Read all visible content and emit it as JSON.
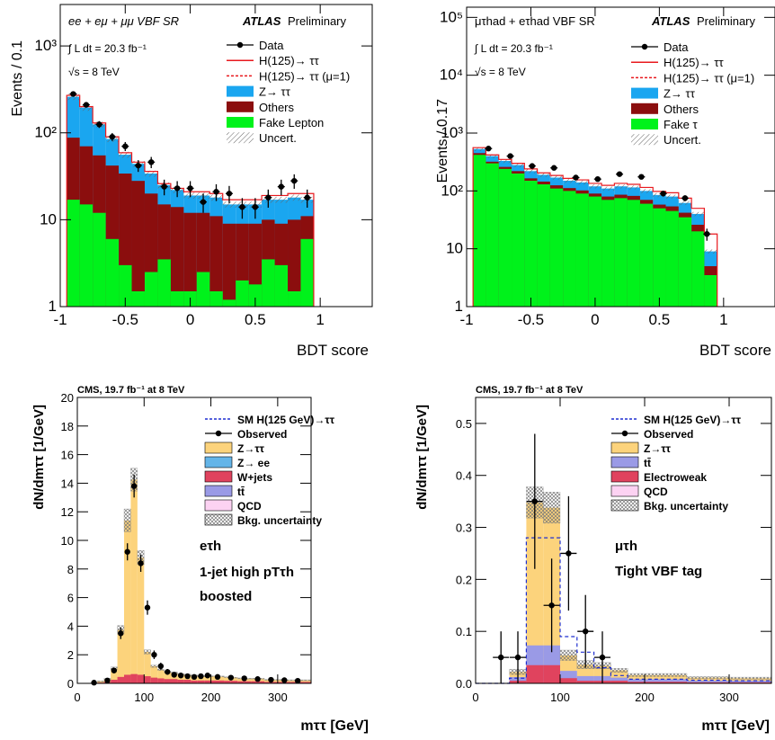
{
  "chart_data": [
    {
      "id": "p1",
      "type": "area",
      "scale": "log",
      "ylabel": "Events / 0.1",
      "xlabel": "BDT score",
      "xlim": [
        -1.0,
        1.4
      ],
      "ylim": [
        1,
        3000
      ],
      "xticks": [
        -1,
        -0.5,
        0,
        0.5,
        1
      ],
      "xtick_labels": [
        "-1",
        "-0.5",
        "0",
        "0.5",
        "1"
      ],
      "yticks": [
        1,
        10,
        100,
        1000
      ],
      "ytick_labels": [
        "1",
        "10",
        "10²",
        "10³"
      ],
      "annotations": {
        "channel": "ee + eμ + μμ VBF SR",
        "atlas": "ATLAS",
        "prelim": "Preliminary",
        "lumi": "∫ L dt = 20.3 fb⁻¹",
        "sqrt_s": "√s = 8 TeV"
      },
      "legend": [
        {
          "label": "Data",
          "kind": "data"
        },
        {
          "label": "H(125)→ ττ",
          "kind": "line",
          "color": "#e8191e"
        },
        {
          "label": "H(125)→ ττ (μ=1)",
          "kind": "dashed",
          "color": "#e8191e"
        },
        {
          "label": "Z→ ττ",
          "kind": "fill",
          "color": "#1aa6f0"
        },
        {
          "label": "Others",
          "kind": "fill",
          "color": "#8b0e0e"
        },
        {
          "label": "Fake Lepton",
          "kind": "fill",
          "color": "#00f21b"
        },
        {
          "label": "Uncert.",
          "kind": "hatch"
        }
      ],
      "bin_edges": [
        -0.95,
        -0.85,
        -0.75,
        -0.65,
        -0.55,
        -0.45,
        -0.35,
        -0.25,
        -0.15,
        -0.05,
        0.05,
        0.15,
        0.25,
        0.35,
        0.45,
        0.55,
        0.65,
        0.75,
        0.85,
        0.95
      ],
      "series": [
        {
          "name": "Fake Lepton",
          "color": "#00f21b",
          "values": [
            17,
            15,
            12,
            6,
            3,
            1.5,
            2.5,
            3.5,
            1.5,
            1.5,
            2.5,
            1.5,
            1.2,
            2,
            1.8,
            3.5,
            3,
            1.5,
            6
          ]
        },
        {
          "name": "Others",
          "color": "#8b0e0e",
          "values": [
            88,
            70,
            55,
            42,
            34,
            28,
            20,
            15,
            14,
            12,
            12,
            11,
            9,
            9,
            9,
            10,
            9,
            10,
            11
          ]
        },
        {
          "name": "Z→ ττ",
          "color": "#1aa6f0",
          "values": [
            260,
            195,
            125,
            85,
            56,
            44,
            34,
            25,
            22,
            19,
            19,
            18,
            15,
            15,
            15,
            17,
            17,
            18,
            17
          ]
        }
      ],
      "signal": [
        270,
        200,
        130,
        90,
        59,
        46,
        36,
        26,
        23,
        21,
        21,
        20,
        17,
        17,
        17,
        19,
        19,
        20,
        20
      ],
      "data_points": [
        {
          "x": -0.9,
          "y": 280
        },
        {
          "x": -0.8,
          "y": 210
        },
        {
          "x": -0.7,
          "y": 125
        },
        {
          "x": -0.6,
          "y": 90
        },
        {
          "x": -0.5,
          "y": 70
        },
        {
          "x": -0.4,
          "y": 42
        },
        {
          "x": -0.3,
          "y": 46
        },
        {
          "x": -0.2,
          "y": 24
        },
        {
          "x": -0.1,
          "y": 23
        },
        {
          "x": 0.0,
          "y": 23
        },
        {
          "x": 0.1,
          "y": 16
        },
        {
          "x": 0.2,
          "y": 21
        },
        {
          "x": 0.3,
          "y": 20
        },
        {
          "x": 0.4,
          "y": 14
        },
        {
          "x": 0.5,
          "y": 14
        },
        {
          "x": 0.6,
          "y": 18
        },
        {
          "x": 0.7,
          "y": 24
        },
        {
          "x": 0.8,
          "y": 28
        },
        {
          "x": 0.9,
          "y": 18
        }
      ],
      "grid": false
    },
    {
      "id": "p2",
      "type": "area",
      "scale": "log",
      "ylabel": "Events / 0.17",
      "xlabel": "BDT score",
      "xlim": [
        -1.0,
        1.4
      ],
      "ylim": [
        1,
        150000
      ],
      "xticks": [
        -1,
        -0.5,
        0,
        0.5,
        1
      ],
      "xtick_labels": [
        "-1",
        "-0.5",
        "0",
        "0.5",
        "1"
      ],
      "yticks": [
        1,
        10,
        100,
        1000,
        10000,
        100000
      ],
      "ytick_labels": [
        "1",
        "10",
        "10²",
        "10³",
        "10⁴",
        "10⁵"
      ],
      "annotations": {
        "channel": "μτhad + eτhad VBF SR",
        "atlas": "ATLAS",
        "prelim": "Preliminary",
        "lumi": "∫ L dt = 20.3 fb⁻¹",
        "sqrt_s": "√s = 8 TeV"
      },
      "legend": [
        {
          "label": "Data",
          "kind": "data"
        },
        {
          "label": "H(125)→ ττ",
          "kind": "line",
          "color": "#e8191e"
        },
        {
          "label": "H(125)→ ττ (μ=1)",
          "kind": "dashed",
          "color": "#e8191e"
        },
        {
          "label": "Z→ ττ",
          "kind": "fill",
          "color": "#1aa6f0"
        },
        {
          "label": "Others",
          "kind": "fill",
          "color": "#8b0e0e"
        },
        {
          "label": "Fake τ",
          "kind": "fill",
          "color": "#00f21b"
        },
        {
          "label": "Uncert.",
          "kind": "hatch"
        }
      ],
      "bin_edges": [
        -0.95,
        -0.85,
        -0.75,
        -0.65,
        -0.55,
        -0.45,
        -0.35,
        -0.25,
        -0.15,
        -0.05,
        0.05,
        0.15,
        0.25,
        0.35,
        0.45,
        0.55,
        0.65,
        0.75,
        0.85,
        0.95
      ],
      "series": [
        {
          "name": "Fake τ",
          "color": "#00f21b",
          "values": [
            420,
            300,
            240,
            200,
            150,
            130,
            110,
            100,
            90,
            80,
            70,
            75,
            70,
            60,
            50,
            45,
            35,
            20,
            3.5
          ]
        },
        {
          "name": "Others",
          "color": "#8b0e0e",
          "values": [
            450,
            320,
            260,
            220,
            165,
            145,
            125,
            112,
            102,
            90,
            80,
            86,
            82,
            70,
            58,
            54,
            42,
            26,
            5
          ]
        },
        {
          "name": "Z→ ττ",
          "color": "#1aa6f0",
          "values": [
            530,
            400,
            330,
            280,
            220,
            190,
            170,
            150,
            140,
            120,
            110,
            120,
            115,
            100,
            85,
            80,
            62,
            40,
            9
          ]
        }
      ],
      "signal": [
        560,
        420,
        350,
        300,
        240,
        205,
        185,
        165,
        155,
        135,
        125,
        135,
        130,
        115,
        98,
        93,
        75,
        50,
        18
      ],
      "data_points": [
        {
          "x": -0.83,
          "y": 540
        },
        {
          "x": -0.66,
          "y": 400
        },
        {
          "x": -0.49,
          "y": 270
        },
        {
          "x": -0.32,
          "y": 250
        },
        {
          "x": -0.15,
          "y": 170
        },
        {
          "x": 0.02,
          "y": 160
        },
        {
          "x": 0.19,
          "y": 195
        },
        {
          "x": 0.36,
          "y": 175
        },
        {
          "x": 0.53,
          "y": 90
        },
        {
          "x": 0.7,
          "y": 75
        },
        {
          "x": 0.87,
          "y": 18
        }
      ],
      "grid": false
    },
    {
      "id": "p3",
      "type": "area",
      "scale": "linear",
      "ylabel": "dN/dmττ [1/GeV]",
      "xlabel": "mττ [GeV]",
      "xlim": [
        0,
        350
      ],
      "ylim": [
        0,
        20
      ],
      "xticks": [
        0,
        100,
        200,
        300
      ],
      "xtick_labels": [
        "0",
        "100",
        "200",
        "300"
      ],
      "yticks": [
        0,
        2,
        4,
        6,
        8,
        10,
        12,
        14,
        16,
        18,
        20
      ],
      "ytick_labels": [
        "0",
        "2",
        "4",
        "6",
        "8",
        "10",
        "12",
        "14",
        "16",
        "18",
        "20"
      ],
      "annotations": {
        "header": "CMS, 19.7 fb⁻¹ at 8 TeV",
        "channel": "eτh",
        "category": "1-jet high pTτh",
        "subcategory": "boosted"
      },
      "legend": [
        {
          "label": "SM H(125 GeV)→ττ",
          "kind": "dashed",
          "color": "#1f2fd0"
        },
        {
          "label": "Observed",
          "kind": "data"
        },
        {
          "label": "Z→ττ",
          "kind": "fill",
          "color": "#fcd37c"
        },
        {
          "label": "Z→ ee",
          "kind": "fill",
          "color": "#64b5e8"
        },
        {
          "label": "W+jets",
          "kind": "fill",
          "color": "#e0435e"
        },
        {
          "label": "tt̄",
          "kind": "fill",
          "color": "#9a9ae6"
        },
        {
          "label": "QCD",
          "kind": "fill",
          "color": "#fcd2f2"
        },
        {
          "label": "Bkg. uncertainty",
          "kind": "hatch"
        }
      ],
      "bin_edges": [
        0,
        10,
        20,
        30,
        40,
        50,
        60,
        70,
        80,
        90,
        100,
        110,
        120,
        130,
        140,
        150,
        160,
        170,
        180,
        190,
        200,
        210,
        220,
        230,
        240,
        250,
        260,
        270,
        280,
        290,
        300,
        310,
        320,
        330,
        340,
        350
      ],
      "series": [
        {
          "name": "W+jets",
          "color": "#e0435e",
          "values": [
            0,
            0,
            0,
            0.05,
            0.1,
            0.25,
            0.45,
            0.6,
            0.65,
            0.6,
            0.5,
            0.4,
            0.35,
            0.3,
            0.3,
            0.25,
            0.25,
            0.2,
            0.2,
            0.2,
            0.2,
            0.2,
            0.18,
            0.18,
            0.15,
            0.15,
            0.15,
            0.15,
            0.1,
            0.1,
            0.1,
            0.1,
            0.1,
            0.1,
            0.1
          ]
        },
        {
          "name": "Z→ττ",
          "color": "#fcd37c",
          "values": [
            0,
            0,
            0,
            0.1,
            0.2,
            0.8,
            3.3,
            10.8,
            13.6,
            8.2,
            1.7,
            0.8,
            0.6,
            0.5,
            0.45,
            0.4,
            0.35,
            0.35,
            0.3,
            0.3,
            0.3,
            0.28,
            0.25,
            0.22,
            0.2,
            0.18,
            0.18,
            0.18,
            0.15,
            0.15,
            0.15,
            0.12,
            0.12,
            0.12,
            0.12
          ]
        }
      ],
      "uncert_half": [
        0,
        0,
        0,
        0.02,
        0.05,
        0.1,
        0.3,
        0.8,
        0.8,
        0.5,
        0.15,
        0.08,
        0.05,
        0.05,
        0.05,
        0.04,
        0.04,
        0.04,
        0.04,
        0.03,
        0.03,
        0.03,
        0.03,
        0.03,
        0.03,
        0.03,
        0.03,
        0.03,
        0.03,
        0.03,
        0.03,
        0.03,
        0.03,
        0.03,
        0.03
      ],
      "data_points": [
        {
          "x": 25,
          "y": 0.05,
          "err": 0.05
        },
        {
          "x": 45,
          "y": 0.2,
          "err": 0.1
        },
        {
          "x": 55,
          "y": 0.9,
          "err": 0.2
        },
        {
          "x": 65,
          "y": 3.5,
          "err": 0.4
        },
        {
          "x": 75,
          "y": 9.2,
          "err": 0.6
        },
        {
          "x": 85,
          "y": 13.8,
          "err": 0.8
        },
        {
          "x": 95,
          "y": 8.4,
          "err": 0.6
        },
        {
          "x": 105,
          "y": 5.3,
          "err": 0.5
        },
        {
          "x": 115,
          "y": 2.0,
          "err": 0.3
        },
        {
          "x": 125,
          "y": 1.2,
          "err": 0.25
        },
        {
          "x": 135,
          "y": 0.8,
          "err": 0.2
        },
        {
          "x": 145,
          "y": 0.6,
          "err": 0.15
        },
        {
          "x": 155,
          "y": 0.55,
          "err": 0.15
        },
        {
          "x": 165,
          "y": 0.5,
          "err": 0.1
        },
        {
          "x": 175,
          "y": 0.45,
          "err": 0.1
        },
        {
          "x": 185,
          "y": 0.5,
          "err": 0.1
        },
        {
          "x": 195,
          "y": 0.55,
          "err": 0.1
        },
        {
          "x": 210,
          "y": 0.45,
          "err": 0.1
        },
        {
          "x": 230,
          "y": 0.4,
          "err": 0.1
        },
        {
          "x": 250,
          "y": 0.35,
          "err": 0.1
        },
        {
          "x": 270,
          "y": 0.3,
          "err": 0.1
        },
        {
          "x": 290,
          "y": 0.25,
          "err": 0.08
        },
        {
          "x": 310,
          "y": 0.22,
          "err": 0.08
        },
        {
          "x": 330,
          "y": 0.18,
          "err": 0.08
        }
      ],
      "grid": false
    },
    {
      "id": "p4",
      "type": "area",
      "scale": "linear",
      "ylabel": "dN/dmττ [1/GeV]",
      "xlabel": "mττ [GeV]",
      "xlim": [
        0,
        350
      ],
      "ylim": [
        0,
        0.55
      ],
      "xticks": [
        0,
        100,
        200,
        300
      ],
      "xtick_labels": [
        "0",
        "100",
        "200",
        "300"
      ],
      "yticks": [
        0,
        0.1,
        0.2,
        0.3,
        0.4,
        0.5
      ],
      "ytick_labels": [
        "0.0",
        "0.1",
        "0.2",
        "0.3",
        "0.4",
        "0.5"
      ],
      "annotations": {
        "header": "CMS, 19.7 fb⁻¹ at 8 TeV",
        "channel": "μτh",
        "category": "Tight VBF tag"
      },
      "legend": [
        {
          "label": "SM H(125 GeV)→ττ",
          "kind": "dashed",
          "color": "#1f2fd0"
        },
        {
          "label": "Observed",
          "kind": "data"
        },
        {
          "label": "Z→ττ",
          "kind": "fill",
          "color": "#fcd37c"
        },
        {
          "label": "tt̄",
          "kind": "fill",
          "color": "#9a9ae6"
        },
        {
          "label": "Electroweak",
          "kind": "fill",
          "color": "#e0435e"
        },
        {
          "label": "QCD",
          "kind": "fill",
          "color": "#fcd2f2"
        },
        {
          "label": "Bkg. uncertainty",
          "kind": "hatch"
        }
      ],
      "bin_edges": [
        0,
        40,
        60,
        80,
        100,
        120,
        140,
        160,
        180,
        200,
        250,
        300,
        350
      ],
      "series": [
        {
          "name": "Electroweak",
          "color": "#e0435e",
          "values": [
            0,
            0.005,
            0.035,
            0.035,
            0.01,
            0.005,
            0.005,
            0.005,
            0.003,
            0.003,
            0.002,
            0.002
          ]
        },
        {
          "name": "tt̄",
          "color": "#9a9ae6",
          "values": [
            0,
            0.007,
            0.038,
            0.038,
            0.014,
            0.009,
            0.009,
            0.006,
            0.005,
            0.005,
            0.003,
            0.003
          ]
        },
        {
          "name": "Z→ττ",
          "color": "#fcd37c",
          "values": [
            0,
            0.01,
            0.275,
            0.265,
            0.03,
            0.022,
            0.02,
            0.014,
            0.008,
            0.008,
            0.006,
            0.005
          ]
        }
      ],
      "signal": [
        0,
        0.01,
        0.28,
        0.28,
        0.09,
        0.06,
        0.03,
        0.015,
        0.008,
        0.008,
        0.006,
        0.005
      ],
      "uncert_half": [
        0,
        0.005,
        0.03,
        0.03,
        0.01,
        0.008,
        0.006,
        0.004,
        0.003,
        0.003,
        0.002,
        0.002
      ],
      "data_points": [
        {
          "x": 30,
          "y": 0.05,
          "err": 0.05
        },
        {
          "x": 50,
          "y": 0.05,
          "err": 0.05
        },
        {
          "x": 70,
          "y": 0.35,
          "err": 0.13
        },
        {
          "x": 90,
          "y": 0.15,
          "err": 0.09
        },
        {
          "x": 110,
          "y": 0.25,
          "err": 0.11
        },
        {
          "x": 130,
          "y": 0.1,
          "err": 0.07
        },
        {
          "x": 150,
          "y": 0.05,
          "err": 0.05
        }
      ],
      "grid": false
    }
  ]
}
